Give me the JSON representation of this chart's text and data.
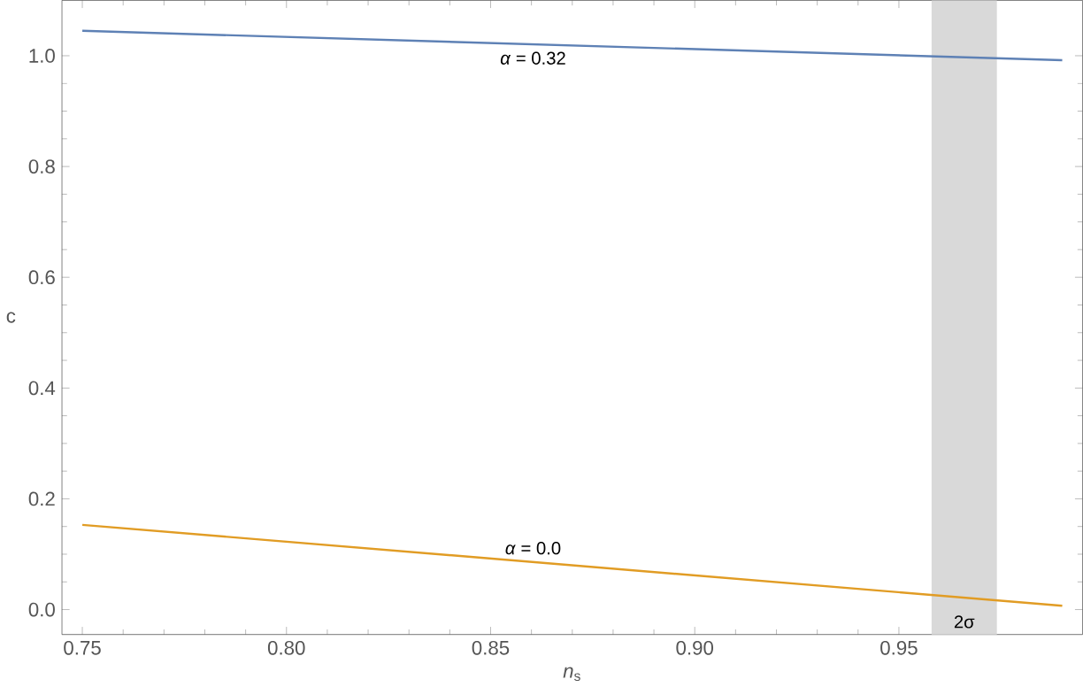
{
  "chart_data": {
    "type": "line",
    "xlabel": "*n*$_{s}$",
    "ylabel": "c",
    "series": [
      {
        "name": "*α* = 0.32",
        "color": "#5e81b5",
        "values": [
          1.045,
          0.992
        ]
      },
      {
        "name": "*α* = 0.0",
        "color": "#e19c24",
        "values": [
          0.153,
          0.007
        ]
      }
    ],
    "x": [
      0.75,
      0.99
    ],
    "xlim": [
      0.745,
      0.995
    ],
    "ylim": [
      -0.045,
      1.1
    ],
    "xticks": [
      0.75,
      {
        "value": 0.8,
        "label": "0.80"
      },
      0.85,
      {
        "value": 0.9,
        "label": "0.90"
      },
      0.95
    ],
    "yticks": [
      {
        "value": 0,
        "label": "0.0"
      },
      0.2,
      0.4,
      0.6,
      0.8,
      {
        "value": 1,
        "label": "1.0"
      }
    ],
    "bands": [
      {
        "axis": "x",
        "from": 0.958,
        "to": 0.974,
        "label": "2σ",
        "color": "#d9d9d9"
      }
    ],
    "grid": false,
    "legend": false,
    "marker": "none",
    "line_style": "solid"
  }
}
